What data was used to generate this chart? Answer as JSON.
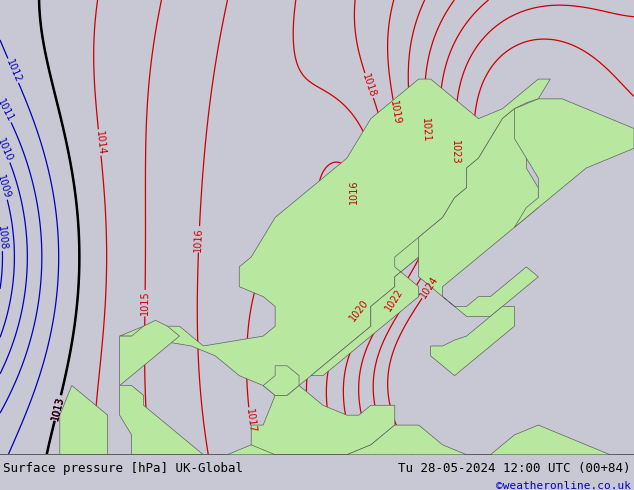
{
  "title_left": "Surface pressure [hPa] UK-Global",
  "title_right": "Tu 28-05-2024 12:00 UTC (00+84)",
  "credit": "©weatheronline.co.uk",
  "bg_color": "#c8c8d4",
  "land_color": "#b8e8a0",
  "sea_color": "#c8c8d4",
  "blue_contour_color": "#0000bb",
  "red_contour_color": "#cc0000",
  "black_contour_color": "#000000",
  "bottom_bar_color": "#e0e0e0",
  "bottom_text_color": "#000000",
  "credit_color": "#0000cc",
  "font_size_bottom": 9,
  "font_size_label": 7
}
